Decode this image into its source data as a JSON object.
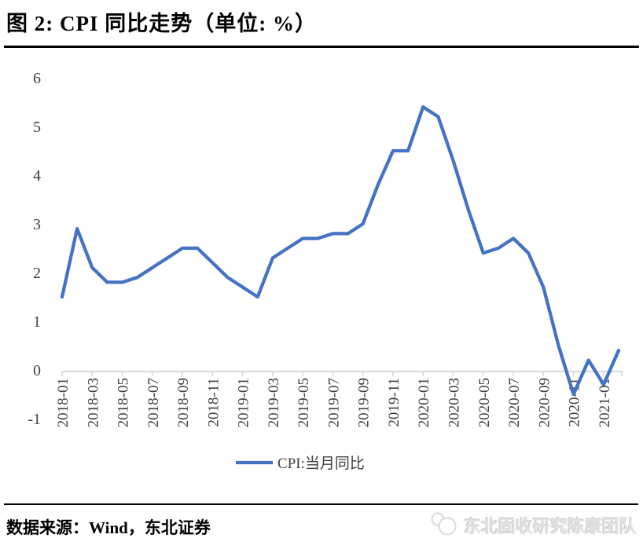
{
  "title": "图 2: CPI 同比走势（单位: %）",
  "legend": {
    "label": "CPI:当月同比"
  },
  "footer": {
    "source": "数据来源：Wind，东北证券",
    "watermark": "东北固收研究陈康团队"
  },
  "colors": {
    "line": "#4472C4",
    "axis_text": "#3f3f3f",
    "axis_line": "#d9d9d9",
    "title_text": "#000000",
    "watermark_text": "#e2e2e2"
  },
  "chart_data": {
    "type": "line",
    "title": "CPI 同比走势",
    "unit": "%",
    "x": [
      "2018-01",
      "2018-02",
      "2018-03",
      "2018-04",
      "2018-05",
      "2018-06",
      "2018-07",
      "2018-08",
      "2018-09",
      "2018-10",
      "2018-11",
      "2018-12",
      "2019-01",
      "2019-02",
      "2019-03",
      "2019-04",
      "2019-05",
      "2019-06",
      "2019-07",
      "2019-08",
      "2019-09",
      "2019-10",
      "2019-11",
      "2019-12",
      "2020-01",
      "2020-02",
      "2020-03",
      "2020-04",
      "2020-05",
      "2020-06",
      "2020-07",
      "2020-08",
      "2020-09",
      "2020-10",
      "2020-11",
      "2020-12",
      "2021-01",
      "2021-02"
    ],
    "series": [
      {
        "name": "CPI:当月同比",
        "color": "#4472C4",
        "values": [
          1.5,
          2.9,
          2.1,
          1.8,
          1.8,
          1.9,
          2.1,
          2.3,
          2.5,
          2.5,
          2.2,
          1.9,
          1.7,
          1.5,
          2.3,
          2.5,
          2.7,
          2.7,
          2.8,
          2.8,
          3.0,
          3.8,
          4.5,
          4.5,
          5.4,
          5.2,
          4.3,
          3.3,
          2.4,
          2.5,
          2.7,
          2.4,
          1.7,
          0.5,
          -0.5,
          0.2,
          -0.3,
          0.4
        ]
      }
    ],
    "x_tick_labels": [
      "2018-01",
      "2018-03",
      "2018-05",
      "2018-07",
      "2018-09",
      "2018-11",
      "2019-01",
      "2019-03",
      "2019-05",
      "2019-07",
      "2019-09",
      "2019-11",
      "2020-01",
      "2020-03",
      "2020-05",
      "2020-07",
      "2020-09",
      "2020-11",
      "2021-01"
    ],
    "y_ticks": [
      6,
      5,
      4,
      3,
      2,
      1,
      0,
      -1
    ],
    "ylim": [
      -1,
      6
    ],
    "grid": false,
    "legend_position": "bottom-center"
  }
}
